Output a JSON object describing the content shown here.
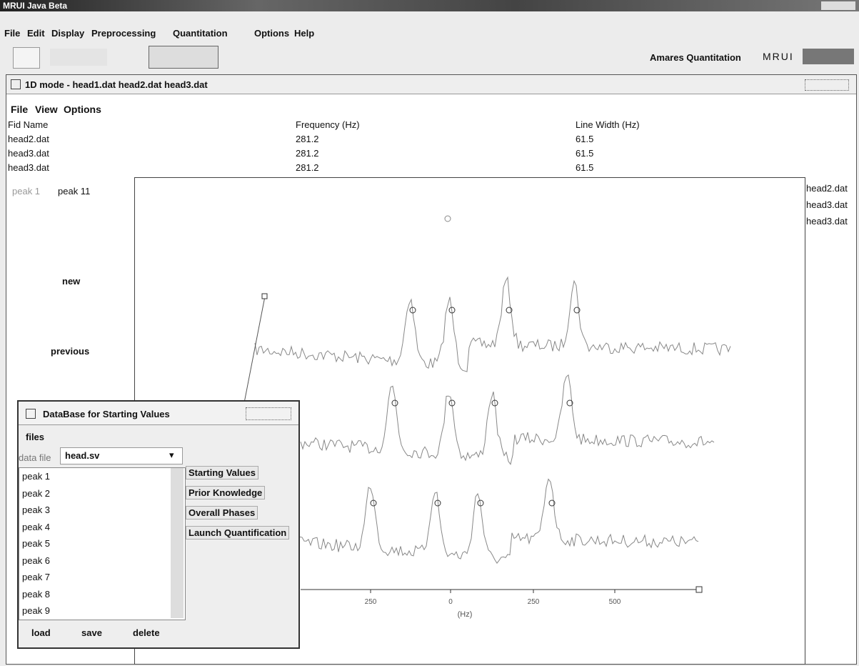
{
  "window": {
    "title": "MRUI Java Beta"
  },
  "menu": [
    "File",
    "Edit",
    "Display",
    "Preprocessing",
    "Quantitation",
    "Options",
    "Help"
  ],
  "toolbar": {
    "mode": "Amares Quantitation",
    "logo": "MRUI"
  },
  "frame": {
    "title": "1D mode - head1.dat head2.dat head3.dat",
    "menu": [
      "File",
      "View",
      "Options"
    ],
    "table": {
      "columns": [
        "Fid Name",
        "Frequency (Hz)",
        "Line Width (Hz)"
      ],
      "rows": [
        [
          "head2.dat",
          "281.2",
          "61.5"
        ],
        [
          "head3.dat",
          "281.2",
          "61.5"
        ],
        [
          "head3.dat",
          "281.2",
          "61.5"
        ]
      ]
    },
    "peak_selector": [
      "peak 1",
      "peak 11"
    ],
    "buttons": [
      "new",
      "previous"
    ],
    "plot": {
      "x_ticks": [
        "250",
        "0",
        "250",
        "500"
      ],
      "x_label": "(Hz)"
    },
    "file_list": [
      "head2.dat",
      "head3.dat",
      "head3.dat"
    ]
  },
  "dialog": {
    "title": "DataBase for Starting Values",
    "menu": [
      "files"
    ],
    "file_label": "data file",
    "file": "head.sv",
    "peaks": [
      "peak 1",
      "peak 2",
      "peak 3",
      "peak 4",
      "peak 5",
      "peak 6",
      "peak 7",
      "peak 8",
      "peak 9"
    ],
    "buttons": [
      "load",
      "save",
      "delete"
    ],
    "actions": [
      "Starting Values",
      "Prior Knowledge",
      "Overall Phases",
      "Launch Quantification"
    ]
  }
}
